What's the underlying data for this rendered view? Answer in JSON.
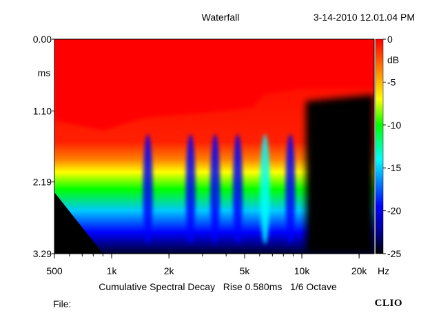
{
  "header": {
    "title": "Waterfall",
    "timestamp": "3-14-2010 12.01.04 PM"
  },
  "footer": {
    "file_label": "File:",
    "brand": "CLIO"
  },
  "chart_data": {
    "type": "heatmap",
    "title": "Waterfall",
    "subtitle": "Cumulative Spectral Decay   Rise 0.580ms   1/6 Octave",
    "xlabel": "Hz",
    "ylabel": "ms",
    "x_scale": "log",
    "xlim": [
      500,
      24000
    ],
    "ylim": [
      0.0,
      3.29
    ],
    "y_inverted": true,
    "x_ticks": [
      {
        "value": 500,
        "label": "500"
      },
      {
        "value": 1000,
        "label": "1k"
      },
      {
        "value": 2000,
        "label": "2k"
      },
      {
        "value": 5000,
        "label": "5k"
      },
      {
        "value": 10000,
        "label": "10k"
      },
      {
        "value": 20000,
        "label": "20k"
      }
    ],
    "y_ticks": [
      {
        "value": 0.0,
        "label": "0.00"
      },
      {
        "value": 1.1,
        "label": "1.10"
      },
      {
        "value": 2.19,
        "label": "2.19"
      },
      {
        "value": 3.29,
        "label": "3.29"
      }
    ],
    "colorbar": {
      "unit": "dB",
      "range": [
        -25,
        0
      ],
      "ticks": [
        {
          "value": 0,
          "label": "0"
        },
        {
          "value": -5,
          "label": "-5"
        },
        {
          "value": -10,
          "label": "-10"
        },
        {
          "value": -15,
          "label": "-15"
        },
        {
          "value": -20,
          "label": "-20"
        },
        {
          "value": -25,
          "label": "-25"
        }
      ],
      "colors": [
        "#000000",
        "#000090",
        "#0000ff",
        "#00ffff",
        "#00ff00",
        "#ffff00",
        "#ff8000",
        "#ff0000"
      ]
    },
    "rise_ms": 0.58,
    "smoothing": "1/6 Octave",
    "decay_contour": [
      {
        "freq": 500,
        "decay_ms": 1.25
      },
      {
        "freq": 900,
        "decay_ms": 1.4
      },
      {
        "freq": 1500,
        "decay_ms": 1.2
      },
      {
        "freq": 2500,
        "decay_ms": 1.15
      },
      {
        "freq": 4000,
        "decay_ms": 1.1
      },
      {
        "freq": 5500,
        "decay_ms": 1.05
      },
      {
        "freq": 6300,
        "decay_ms": 0.85
      },
      {
        "freq": 8000,
        "decay_ms": 0.8
      },
      {
        "freq": 10000,
        "decay_ms": 0.75
      },
      {
        "freq": 15000,
        "decay_ms": 0.75
      },
      {
        "freq": 24000,
        "decay_ms": 0.75
      }
    ],
    "resonance_ridges": [
      {
        "freq": 1550,
        "level_db": -16
      },
      {
        "freq": 2600,
        "level_db": -18
      },
      {
        "freq": 3500,
        "level_db": -17
      },
      {
        "freq": 4600,
        "level_db": -19
      },
      {
        "freq": 6400,
        "level_db": -12
      },
      {
        "freq": 8700,
        "level_db": -18
      }
    ]
  }
}
